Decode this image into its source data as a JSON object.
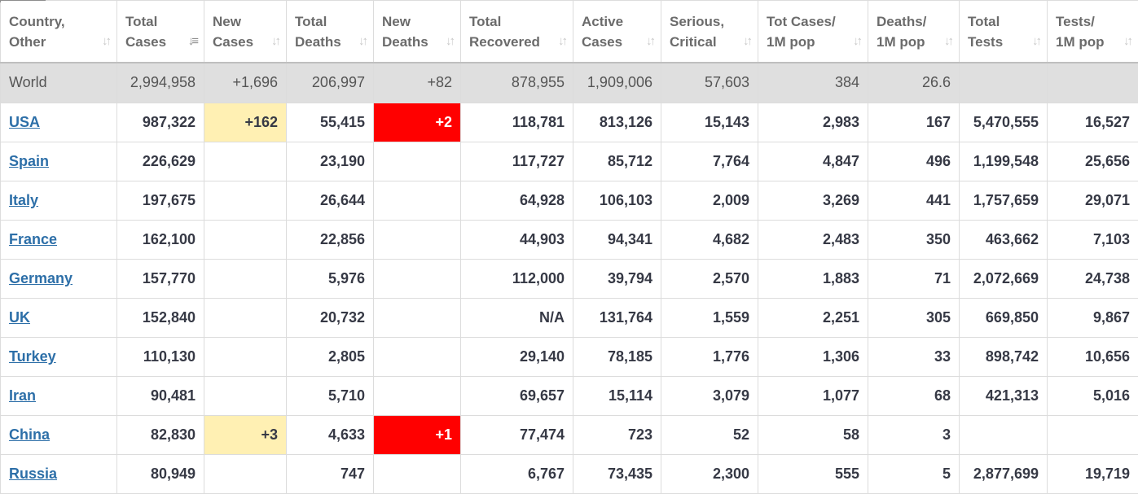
{
  "headers": [
    {
      "l1": "Country,",
      "l2": "Other"
    },
    {
      "l1": "Total",
      "l2": "Cases",
      "sorted": true
    },
    {
      "l1": "New",
      "l2": "Cases"
    },
    {
      "l1": "Total",
      "l2": "Deaths"
    },
    {
      "l1": "New",
      "l2": "Deaths"
    },
    {
      "l1": "Total",
      "l2": "Recovered"
    },
    {
      "l1": "Active",
      "l2": "Cases"
    },
    {
      "l1": "Serious,",
      "l2": "Critical"
    },
    {
      "l1": "Tot Cases/",
      "l2": "1M pop"
    },
    {
      "l1": "Deaths/",
      "l2": "1M pop"
    },
    {
      "l1": "Total",
      "l2": "Tests"
    },
    {
      "l1": "Tests/",
      "l2": "1M pop"
    }
  ],
  "sort_icon": "↓↑",
  "sort_icon_active": "↓≡",
  "colors": {
    "new_cases_highlight": "#fff0b3",
    "new_deaths_highlight": "#ff0000",
    "link": "#2d6fa8"
  },
  "world": [
    "World",
    "2,994,958",
    "+1,696",
    "206,997",
    "+82",
    "878,955",
    "1,909,006",
    "57,603",
    "384",
    "26.6",
    "",
    ""
  ],
  "rows": [
    [
      "USA",
      "987,322",
      "+162",
      "55,415",
      "+2",
      "118,781",
      "813,126",
      "15,143",
      "2,983",
      "167",
      "5,470,555",
      "16,527"
    ],
    [
      "Spain",
      "226,629",
      "",
      "23,190",
      "",
      "117,727",
      "85,712",
      "7,764",
      "4,847",
      "496",
      "1,199,548",
      "25,656"
    ],
    [
      "Italy",
      "197,675",
      "",
      "26,644",
      "",
      "64,928",
      "106,103",
      "2,009",
      "3,269",
      "441",
      "1,757,659",
      "29,071"
    ],
    [
      "France",
      "162,100",
      "",
      "22,856",
      "",
      "44,903",
      "94,341",
      "4,682",
      "2,483",
      "350",
      "463,662",
      "7,103"
    ],
    [
      "Germany",
      "157,770",
      "",
      "5,976",
      "",
      "112,000",
      "39,794",
      "2,570",
      "1,883",
      "71",
      "2,072,669",
      "24,738"
    ],
    [
      "UK",
      "152,840",
      "",
      "20,732",
      "",
      "N/A",
      "131,764",
      "1,559",
      "2,251",
      "305",
      "669,850",
      "9,867"
    ],
    [
      "Turkey",
      "110,130",
      "",
      "2,805",
      "",
      "29,140",
      "78,185",
      "1,776",
      "1,306",
      "33",
      "898,742",
      "10,656"
    ],
    [
      "Iran",
      "90,481",
      "",
      "5,710",
      "",
      "69,657",
      "15,114",
      "3,079",
      "1,077",
      "68",
      "421,313",
      "5,016"
    ],
    [
      "China",
      "82,830",
      "+3",
      "4,633",
      "+1",
      "77,474",
      "723",
      "52",
      "58",
      "3",
      "",
      ""
    ],
    [
      "Russia",
      "80,949",
      "",
      "747",
      "",
      "6,767",
      "73,435",
      "2,300",
      "555",
      "5",
      "2,877,699",
      "19,719"
    ]
  ]
}
